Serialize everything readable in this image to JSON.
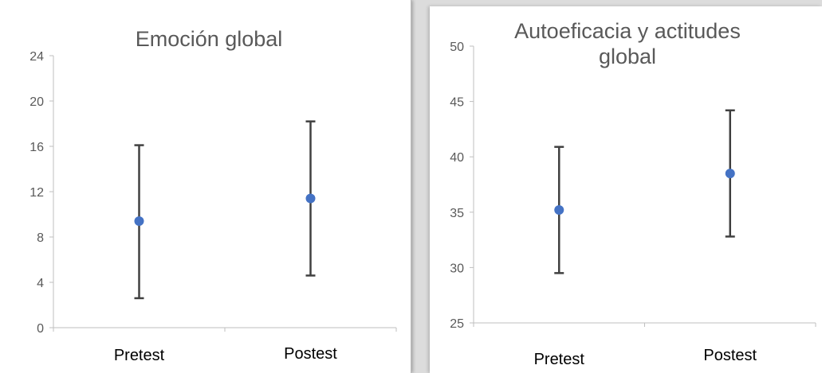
{
  "chart_data": [
    {
      "type": "scatter",
      "title": [
        "Emoción global"
      ],
      "categories": [
        "Pretest",
        "Postest"
      ],
      "series": [
        {
          "values": [
            9.4,
            11.4
          ],
          "error_low": [
            2.6,
            4.6
          ],
          "error_high": [
            16.1,
            18.2
          ]
        }
      ],
      "ylim": [
        0,
        24
      ],
      "yticks": [
        "0",
        "4",
        "8",
        "12",
        "16",
        "20",
        "24"
      ],
      "grid": false,
      "point_color": "#4472c4"
    },
    {
      "type": "scatter",
      "title": [
        "Autoeficacia y actitudes",
        "global"
      ],
      "categories": [
        "Pretest",
        "Postest"
      ],
      "series": [
        {
          "values": [
            35.2,
            38.5
          ],
          "error_low": [
            29.5,
            32.8
          ],
          "error_high": [
            40.9,
            44.2
          ]
        }
      ],
      "ylim": [
        25,
        50
      ],
      "yticks": [
        "25",
        "30",
        "35",
        "40",
        "45",
        "50"
      ],
      "grid": false,
      "point_color": "#4472c4"
    }
  ]
}
